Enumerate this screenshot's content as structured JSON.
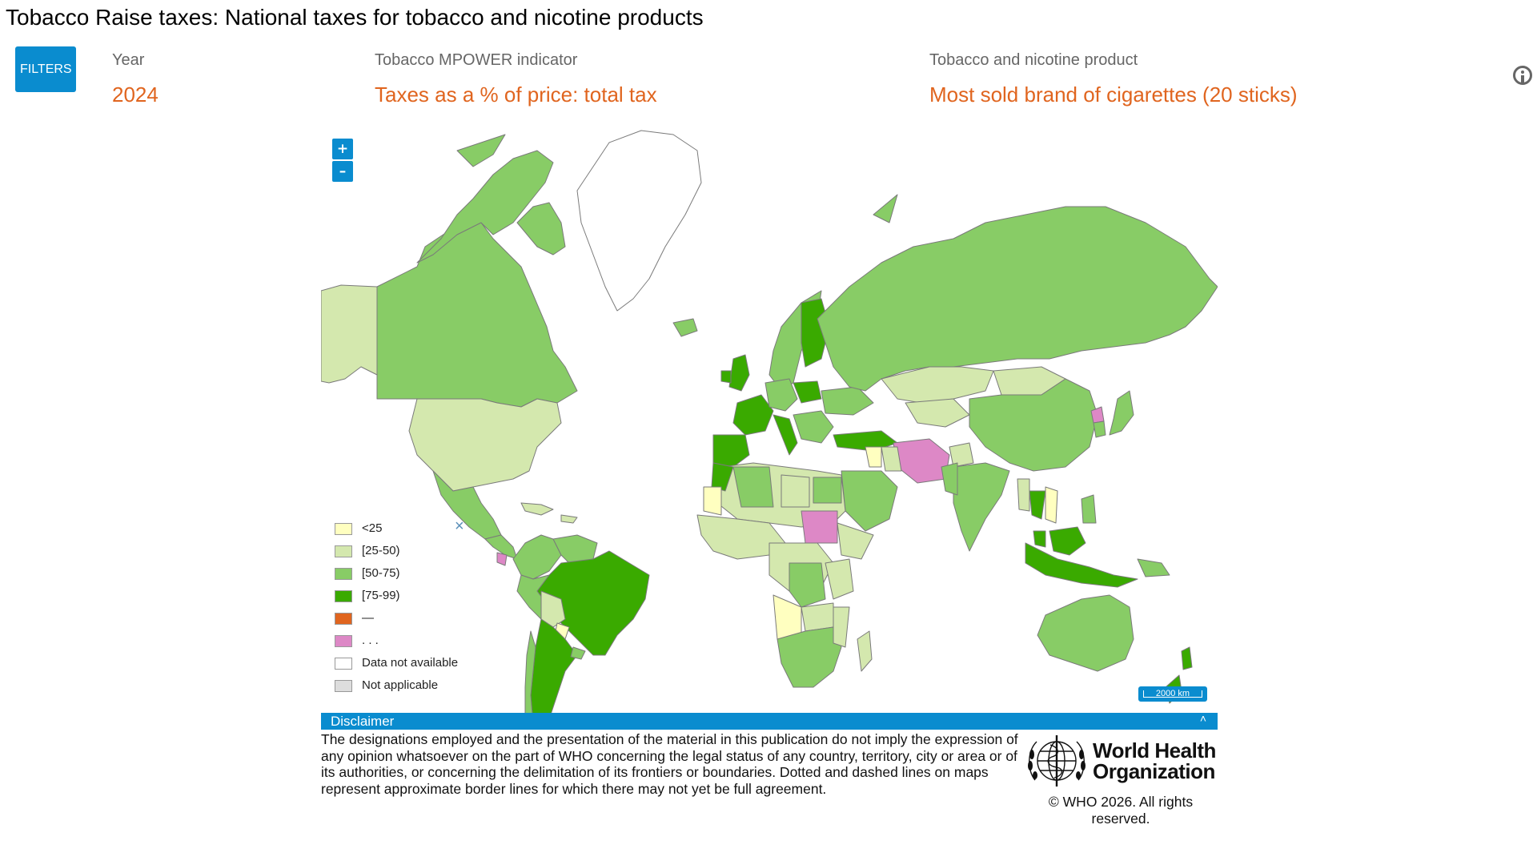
{
  "header": {
    "title": "Tobacco Raise taxes: National taxes for tobacco and nicotine products"
  },
  "filters": {
    "button_label": "FILTERS",
    "year": {
      "label": "Year",
      "value": "2024"
    },
    "indicator": {
      "label": "Tobacco MPOWER indicator",
      "value": "Taxes as a % of price: total tax"
    },
    "product": {
      "label": "Tobacco and nicotine product",
      "value": "Most sold brand of cigarettes (20 sticks)"
    }
  },
  "map": {
    "zoom_in": "+",
    "zoom_out": "–",
    "scalebar": "2000 km",
    "legend_close": "×",
    "legend": [
      {
        "label": "<25",
        "color": "#ffffc0"
      },
      {
        "label": "[25-50)",
        "color": "#d4e8ae"
      },
      {
        "label": "[50-75)",
        "color": "#88cc66"
      },
      {
        "label": "[75-99)",
        "color": "#3aaa00"
      },
      {
        "label": "—",
        "color": "#e0651f"
      },
      {
        "label": ". . .",
        "color": "#dd88c6"
      },
      {
        "label": "Data not available",
        "color": "#ffffff"
      },
      {
        "label": "Not applicable",
        "color": "#dddddd"
      }
    ]
  },
  "disclaimer": {
    "title": "Disclaimer",
    "caret": "˄",
    "text": "The designations employed and the presentation of the material in this publication do not imply the expression of any opinion whatsoever on the part of WHO concerning the legal status of any country, territory, city or area or of its authorities, or concerning the delimitation of its frontiers or boundaries. Dotted and dashed lines on maps represent approximate border lines for which there may not yet be full agreement."
  },
  "footer": {
    "org_name_line1": "World Health",
    "org_name_line2": "Organization",
    "copyright": "© WHO 2026. All rights reserved."
  }
}
